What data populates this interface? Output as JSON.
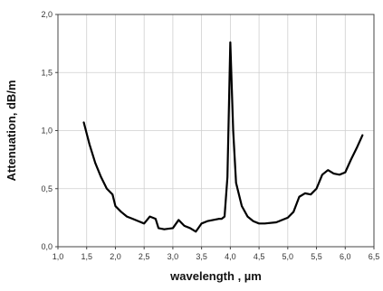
{
  "chart_data": {
    "type": "line",
    "title": "",
    "xlabel": "wavelength , µm",
    "ylabel": "Attenuation, dB/m",
    "xlim": [
      1.0,
      6.5
    ],
    "ylim": [
      0.0,
      2.0
    ],
    "x_ticks": [
      "1,0",
      "1,5",
      "2,0",
      "2,5",
      "3,0",
      "3,5",
      "4,0",
      "4,5",
      "5,0",
      "5,5",
      "6,0",
      "6,5"
    ],
    "y_ticks": [
      "0,0",
      "0,5",
      "1,0",
      "1,5",
      "2,0"
    ],
    "grid": true,
    "series": [
      {
        "color": "#000000",
        "x": [
          1.45,
          1.55,
          1.65,
          1.75,
          1.85,
          1.95,
          2.0,
          2.1,
          2.2,
          2.3,
          2.4,
          2.5,
          2.6,
          2.7,
          2.75,
          2.85,
          3.0,
          3.1,
          3.2,
          3.3,
          3.4,
          3.5,
          3.6,
          3.7,
          3.8,
          3.85,
          3.9,
          3.95,
          4.0,
          4.05,
          4.1,
          4.2,
          4.3,
          4.4,
          4.5,
          4.6,
          4.8,
          5.0,
          5.1,
          5.2,
          5.3,
          5.4,
          5.5,
          5.55,
          5.6,
          5.7,
          5.8,
          5.9,
          6.0,
          6.1,
          6.2,
          6.3
        ],
        "y": [
          1.07,
          0.88,
          0.72,
          0.6,
          0.5,
          0.45,
          0.35,
          0.3,
          0.26,
          0.24,
          0.22,
          0.2,
          0.26,
          0.24,
          0.16,
          0.15,
          0.16,
          0.23,
          0.18,
          0.16,
          0.13,
          0.2,
          0.22,
          0.23,
          0.24,
          0.24,
          0.26,
          0.6,
          1.76,
          1.0,
          0.55,
          0.35,
          0.26,
          0.22,
          0.2,
          0.2,
          0.21,
          0.25,
          0.3,
          0.43,
          0.46,
          0.45,
          0.5,
          0.56,
          0.62,
          0.66,
          0.63,
          0.62,
          0.64,
          0.75,
          0.85,
          0.96
        ]
      }
    ]
  }
}
